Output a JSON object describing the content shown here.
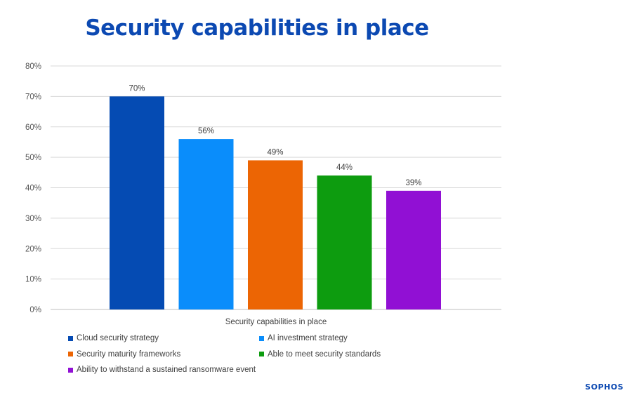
{
  "page": {
    "title": "Security capabilities in place"
  },
  "chart_data": {
    "type": "bar",
    "title": "Security capabilities in place",
    "xlabel": "Security capabilities in place",
    "ylabel": "",
    "ylim": [
      0,
      80
    ],
    "yticks": [
      "0%",
      "10%",
      "20%",
      "30%",
      "40%",
      "50%",
      "60%",
      "70%",
      "80%"
    ],
    "grid": true,
    "legend_position": "bottom",
    "categories": [
      "Security capabilities in place"
    ],
    "series": [
      {
        "name": "Cloud security strategy",
        "values": [
          70
        ],
        "label": "70%",
        "color": "#054bb3"
      },
      {
        "name": "AI investment strategy",
        "values": [
          56
        ],
        "label": "56%",
        "color": "#0a8dfb"
      },
      {
        "name": "Security maturity frameworks",
        "values": [
          49
        ],
        "label": "49%",
        "color": "#ec6504"
      },
      {
        "name": "Able to meet security standards",
        "values": [
          44
        ],
        "label": "44%",
        "color": "#0d9c0f"
      },
      {
        "name": "Ability to withstand a sustained ransomware event",
        "values": [
          39
        ],
        "label": "39%",
        "color": "#9110d4"
      }
    ]
  },
  "logo": {
    "text": "SOPHOS"
  }
}
